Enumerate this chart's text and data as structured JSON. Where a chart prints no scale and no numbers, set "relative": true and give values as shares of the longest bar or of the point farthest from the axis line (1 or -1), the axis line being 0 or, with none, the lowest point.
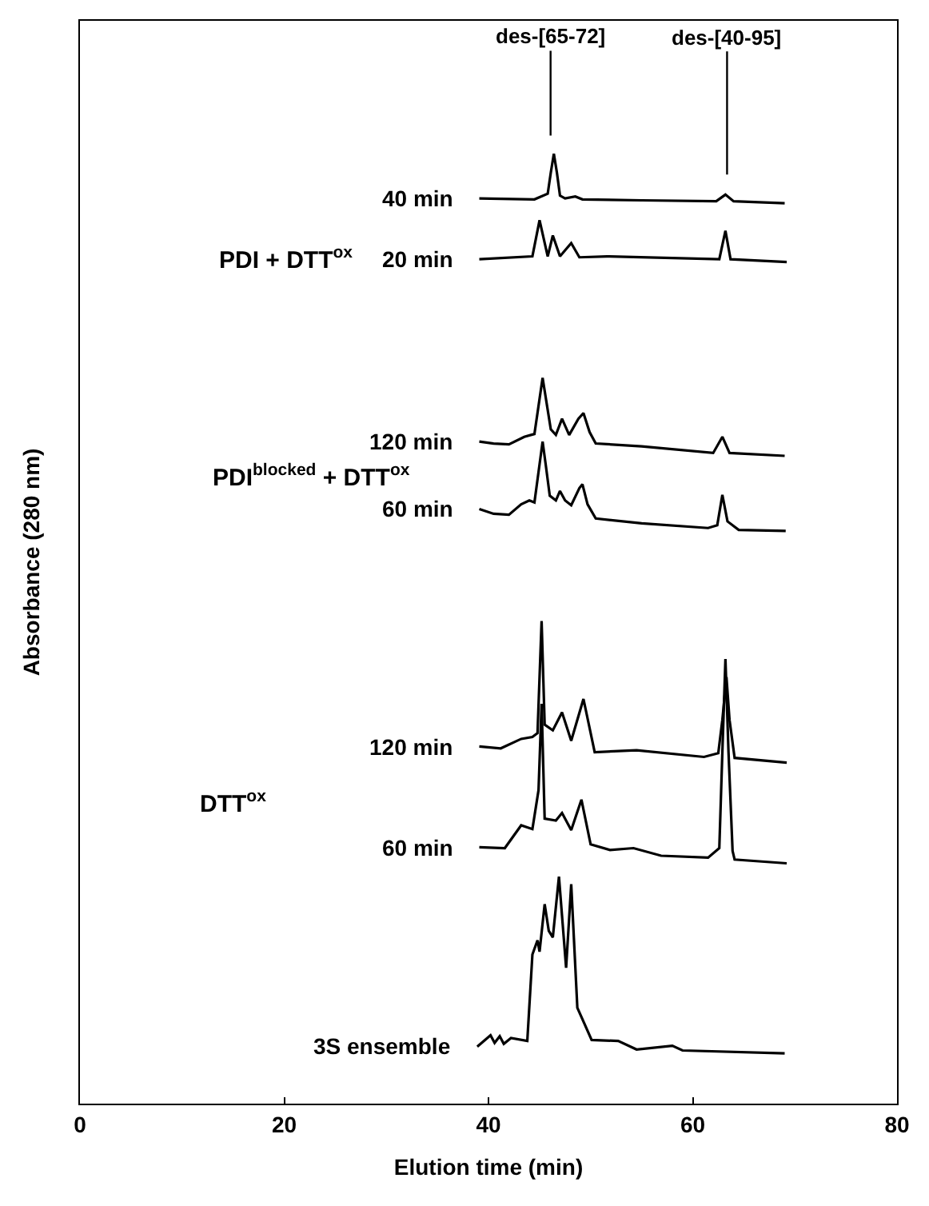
{
  "chart_data": {
    "type": "line",
    "relative": true,
    "xlabel": "Elution time (min)",
    "ylabel": "Absorbance (280 nm)",
    "xlim": [
      0,
      80
    ],
    "xticks": [
      0,
      20,
      40,
      60,
      80
    ],
    "tick_labels": "x",
    "grid": false,
    "legend": false,
    "marker": "none",
    "line_style": "solid",
    "annotations": [
      "des-[65-72]",
      "des-[40-95]",
      "PDI + DTT$^{ox}$",
      "PDI$^{blocked}$ + DTT$^{ox}$",
      "DTT$^{ox}$"
    ],
    "series": [
      {
        "name": "40 min",
        "color": "#000000",
        "x": [
          39.1,
          44.5,
          45.8,
          46.1,
          46.4,
          46.7,
          47.0,
          47.5,
          48.5,
          49.2,
          55,
          62.3,
          63.2,
          64.0,
          69
        ],
        "values": [
          0.953,
          0.952,
          0.958,
          0.98,
          1.0,
          0.98,
          0.956,
          0.953,
          0.955,
          0.952,
          0.951,
          0.95,
          0.957,
          0.95,
          0.948
        ]
      },
      {
        "name": "20 min",
        "color": "#000000",
        "x": [
          39.1,
          44.3,
          45.0,
          45.8,
          46.3,
          47.0,
          48.1,
          48.9,
          51.6,
          62.6,
          63.2,
          63.7,
          69.2
        ],
        "values": [
          0.889,
          0.892,
          0.93,
          0.892,
          0.914,
          0.892,
          0.906,
          0.891,
          0.892,
          0.889,
          0.919,
          0.889,
          0.886
        ]
      },
      {
        "name": "120 min",
        "color": "#000000",
        "x": [
          39.1,
          40.5,
          42.0,
          43.5,
          44.5,
          45.3,
          46.1,
          46.6,
          47.2,
          47.9,
          48.8,
          49.3,
          49.9,
          50.5,
          55,
          62.0,
          62.9,
          63.6,
          69.0
        ],
        "values": [
          0.697,
          0.695,
          0.694,
          0.702,
          0.705,
          0.764,
          0.71,
          0.704,
          0.721,
          0.704,
          0.721,
          0.727,
          0.707,
          0.695,
          0.692,
          0.685,
          0.702,
          0.685,
          0.682
        ]
      },
      {
        "name": "60 min",
        "color": "#000000",
        "x": [
          39.1,
          40.5,
          42.0,
          43.2,
          44.0,
          44.5,
          45.0,
          45.3,
          45.6,
          46.0,
          46.6,
          47.0,
          47.5,
          48.1,
          48.9,
          49.2,
          49.7,
          50.5,
          55,
          61.5,
          62.4,
          62.9,
          63.4,
          64.5,
          69.1
        ],
        "values": [
          0.626,
          0.621,
          0.62,
          0.631,
          0.635,
          0.633,
          0.673,
          0.697,
          0.673,
          0.64,
          0.635,
          0.645,
          0.635,
          0.63,
          0.648,
          0.652,
          0.631,
          0.616,
          0.611,
          0.606,
          0.609,
          0.641,
          0.613,
          0.604,
          0.603
        ]
      },
      {
        "name": "120 min",
        "color": "#000000",
        "x": [
          39.1,
          41.2,
          43.2,
          44.3,
          44.8,
          45.2,
          45.5,
          46.3,
          47.2,
          48.1,
          49.3,
          50.4,
          54.5,
          61.1,
          62.5,
          62.9,
          63.3,
          63.6,
          64.1,
          69.2
        ],
        "values": [
          0.376,
          0.374,
          0.384,
          0.386,
          0.39,
          0.508,
          0.399,
          0.393,
          0.412,
          0.382,
          0.426,
          0.37,
          0.372,
          0.365,
          0.369,
          0.404,
          0.449,
          0.404,
          0.364,
          0.359
        ]
      },
      {
        "name": "60 min",
        "color": "#000000",
        "x": [
          39.1,
          41.6,
          43.2,
          44.3,
          44.9,
          45.2,
          45.5,
          46.6,
          47.2,
          48.1,
          49.1,
          50.0,
          51.9,
          54.2,
          56.9,
          61.5,
          62.6,
          62.9,
          63.2,
          63.5,
          63.9,
          64.1,
          69.2
        ],
        "values": [
          0.27,
          0.269,
          0.293,
          0.289,
          0.33,
          0.421,
          0.3,
          0.298,
          0.306,
          0.288,
          0.32,
          0.273,
          0.267,
          0.269,
          0.261,
          0.259,
          0.269,
          0.37,
          0.468,
          0.37,
          0.266,
          0.257,
          0.253
        ]
      },
      {
        "name": "3S ensemble",
        "color": "#000000",
        "x": [
          38.9,
          40.2,
          40.6,
          41.1,
          41.5,
          42.2,
          43.8,
          44.3,
          44.8,
          45.0,
          45.5,
          45.9,
          46.3,
          46.9,
          47.6,
          48.1,
          48.7,
          50.1,
          52.7,
          54.5,
          58.0,
          59.0,
          69.0
        ],
        "values": [
          0.06,
          0.072,
          0.064,
          0.071,
          0.063,
          0.069,
          0.066,
          0.157,
          0.172,
          0.16,
          0.21,
          0.182,
          0.175,
          0.239,
          0.143,
          0.231,
          0.101,
          0.067,
          0.066,
          0.057,
          0.061,
          0.056,
          0.053
        ]
      }
    ]
  }
}
